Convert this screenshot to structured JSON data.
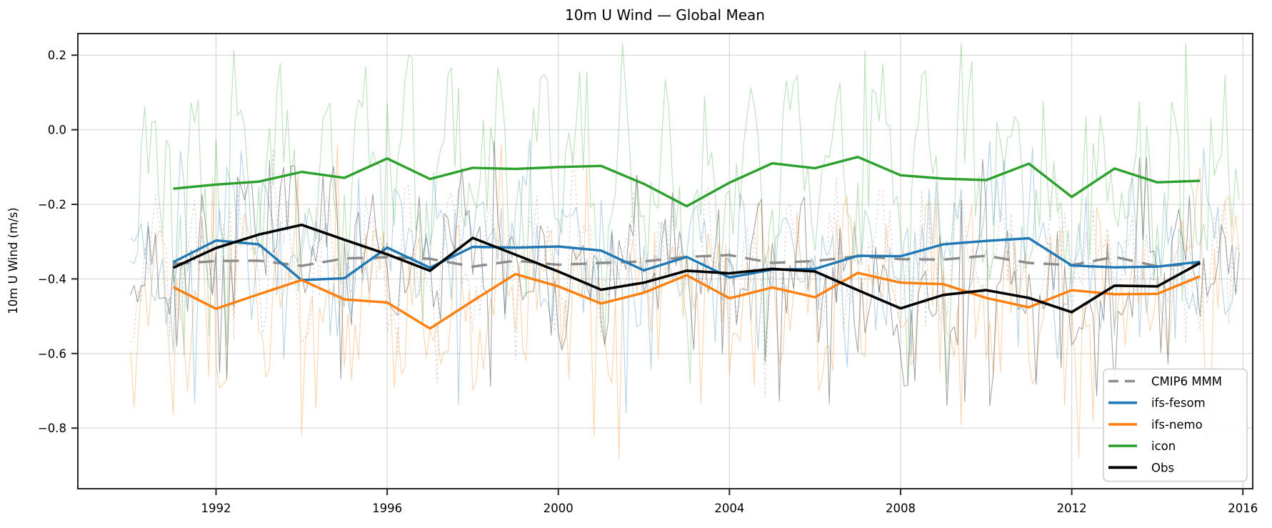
{
  "figure": {
    "title": "10m U Wind — Global Mean",
    "ylabel": "10m U Wind (m/s)"
  },
  "chart_data": {
    "type": "line",
    "title": "10m U Wind — Global Mean",
    "xlabel": "",
    "ylabel": "10m U Wind (m/s)",
    "grid": true,
    "grid_color": "#d9d9d9",
    "spine_color": "#262626",
    "legend_position": "lower right",
    "xlim": [
      1988.77,
      2016.23
    ],
    "ylim": [
      -0.9625,
      0.2579
    ],
    "x_ticks": [
      1992,
      1996,
      2000,
      2004,
      2008,
      2012,
      2016
    ],
    "x_tick_labels": [
      "1992",
      "1996",
      "2000",
      "2004",
      "2008",
      "2012",
      "2016"
    ],
    "y_ticks": [
      0.2,
      0.0,
      -0.2,
      -0.4,
      -0.6,
      -0.8
    ],
    "y_tick_labels": [
      "0.2",
      "0.0",
      "−0.2",
      "−0.4",
      "−0.6",
      "−0.8"
    ],
    "years": [
      1991,
      1992,
      1993,
      1994,
      1995,
      1996,
      1997,
      1998,
      1999,
      2000,
      2001,
      2002,
      2003,
      2004,
      2005,
      2006,
      2007,
      2008,
      2009,
      2010,
      2011,
      2012,
      2013,
      2014,
      2015
    ],
    "series": [
      {
        "name": "CMIP6 MMM",
        "color": "#8c8c8c",
        "style": "dashed",
        "width": 3.4,
        "values": [
          -0.36,
          -0.352,
          -0.351,
          -0.365,
          -0.345,
          -0.342,
          -0.346,
          -0.367,
          -0.351,
          -0.362,
          -0.357,
          -0.353,
          -0.341,
          -0.336,
          -0.357,
          -0.352,
          -0.339,
          -0.347,
          -0.348,
          -0.338,
          -0.357,
          -0.363,
          -0.341,
          -0.366,
          -0.359
        ]
      },
      {
        "name": "ifs-fesom",
        "color": "#1f77b4",
        "style": "solid",
        "width": 3.4,
        "values": [
          -0.355,
          -0.297,
          -0.307,
          -0.403,
          -0.398,
          -0.316,
          -0.37,
          -0.314,
          -0.316,
          -0.313,
          -0.324,
          -0.377,
          -0.341,
          -0.396,
          -0.375,
          -0.373,
          -0.338,
          -0.339,
          -0.307,
          -0.298,
          -0.291,
          -0.364,
          -0.369,
          -0.367,
          -0.354
        ]
      },
      {
        "name": "ifs-nemo",
        "color": "#ff7f0e",
        "style": "solid",
        "width": 3.4,
        "values": [
          -0.422,
          -0.48,
          -0.441,
          -0.403,
          -0.455,
          -0.463,
          -0.533,
          -0.459,
          -0.387,
          -0.42,
          -0.466,
          -0.437,
          -0.39,
          -0.452,
          -0.423,
          -0.449,
          -0.384,
          -0.41,
          -0.414,
          -0.451,
          -0.476,
          -0.43,
          -0.441,
          -0.44,
          -0.393
        ]
      },
      {
        "name": "icon",
        "color": "#2ca02c",
        "style": "solid",
        "width": 3.4,
        "values": [
          -0.158,
          -0.147,
          -0.139,
          -0.113,
          -0.129,
          -0.077,
          -0.132,
          -0.102,
          -0.105,
          -0.1,
          -0.097,
          -0.145,
          -0.205,
          -0.142,
          -0.09,
          -0.103,
          -0.073,
          -0.122,
          -0.131,
          -0.135,
          -0.091,
          -0.18,
          -0.104,
          -0.141,
          -0.137
        ]
      },
      {
        "name": "Obs",
        "color": "#000000",
        "style": "solid",
        "width": 3.6,
        "values": [
          -0.37,
          -0.317,
          -0.281,
          -0.255,
          -0.295,
          -0.334,
          -0.378,
          -0.29,
          -0.335,
          -0.38,
          -0.429,
          -0.41,
          -0.378,
          -0.385,
          -0.373,
          -0.38,
          -0.43,
          -0.479,
          -0.443,
          -0.43,
          -0.451,
          -0.489,
          -0.418,
          -0.42,
          -0.357
        ]
      }
    ],
    "monthly_overlays": {
      "note": "Thin faint lines are monthly values Jan 1990 – Dec 2015 oscillating around each annual mean; procedurally approximated (seeded) to match amplitude/extremes read from the image.",
      "x_start": 1990.0,
      "x_end": 2015.917,
      "points_per_year": 12,
      "series": [
        {
          "name": "icon monthly",
          "match": "icon",
          "color": "#2ca02c",
          "alpha": 0.32,
          "width": 1.1,
          "dotted": false,
          "seed": 20,
          "seasonal": 0.16,
          "jitter": 0.15,
          "spike_p": 0.1,
          "spike": 0.24,
          "up_p": 0.09,
          "clamp": [
            -0.68,
            0.232
          ]
        },
        {
          "name": "ifs-fesom monthly",
          "match": "ifs-fesom",
          "color": "#1f77b4",
          "alpha": 0.33,
          "width": 1.1,
          "dotted": false,
          "seed": 7,
          "seasonal": 0.09,
          "jitter": 0.13,
          "spike_p": 0.09,
          "spike": 0.2,
          "up_p": 0.08,
          "clamp": [
            -0.76,
            -0.025
          ]
        },
        {
          "name": "ifs-nemo monthly",
          "match": "ifs-nemo",
          "color": "#ff7f0e",
          "alpha": 0.34,
          "width": 1.1,
          "dotted": false,
          "seed": 13,
          "seasonal": 0.11,
          "jitter": 0.14,
          "spike_p": 0.11,
          "spike": 0.24,
          "up_p": 0.07,
          "clamp": [
            -0.88,
            -0.04
          ]
        },
        {
          "name": "CMIP6 MMM monthly",
          "match": "CMIP6 MMM",
          "color": "#bbbbbb",
          "alpha": 0.8,
          "width": 1.0,
          "dotted": true,
          "seed": 3,
          "seasonal": 0.1,
          "jitter": 0.12,
          "spike_p": 0.08,
          "spike": 0.17,
          "up_p": 0.07,
          "clamp": [
            -0.72,
            -0.05
          ]
        },
        {
          "name": "Obs monthly",
          "match": "Obs",
          "color": "#4a4a4a",
          "alpha": 0.55,
          "width": 1.0,
          "dotted": false,
          "seed": 42,
          "seasonal": 0.1,
          "jitter": 0.13,
          "spike_p": 0.09,
          "spike": 0.22,
          "up_p": 0.08,
          "clamp": [
            -0.74,
            -0.03
          ]
        }
      ]
    },
    "legend": {
      "entries": [
        "CMIP6 MMM",
        "ifs-fesom",
        "ifs-nemo",
        "icon",
        "Obs"
      ],
      "border_color": "#cccccc",
      "background": "#ffffff"
    }
  }
}
